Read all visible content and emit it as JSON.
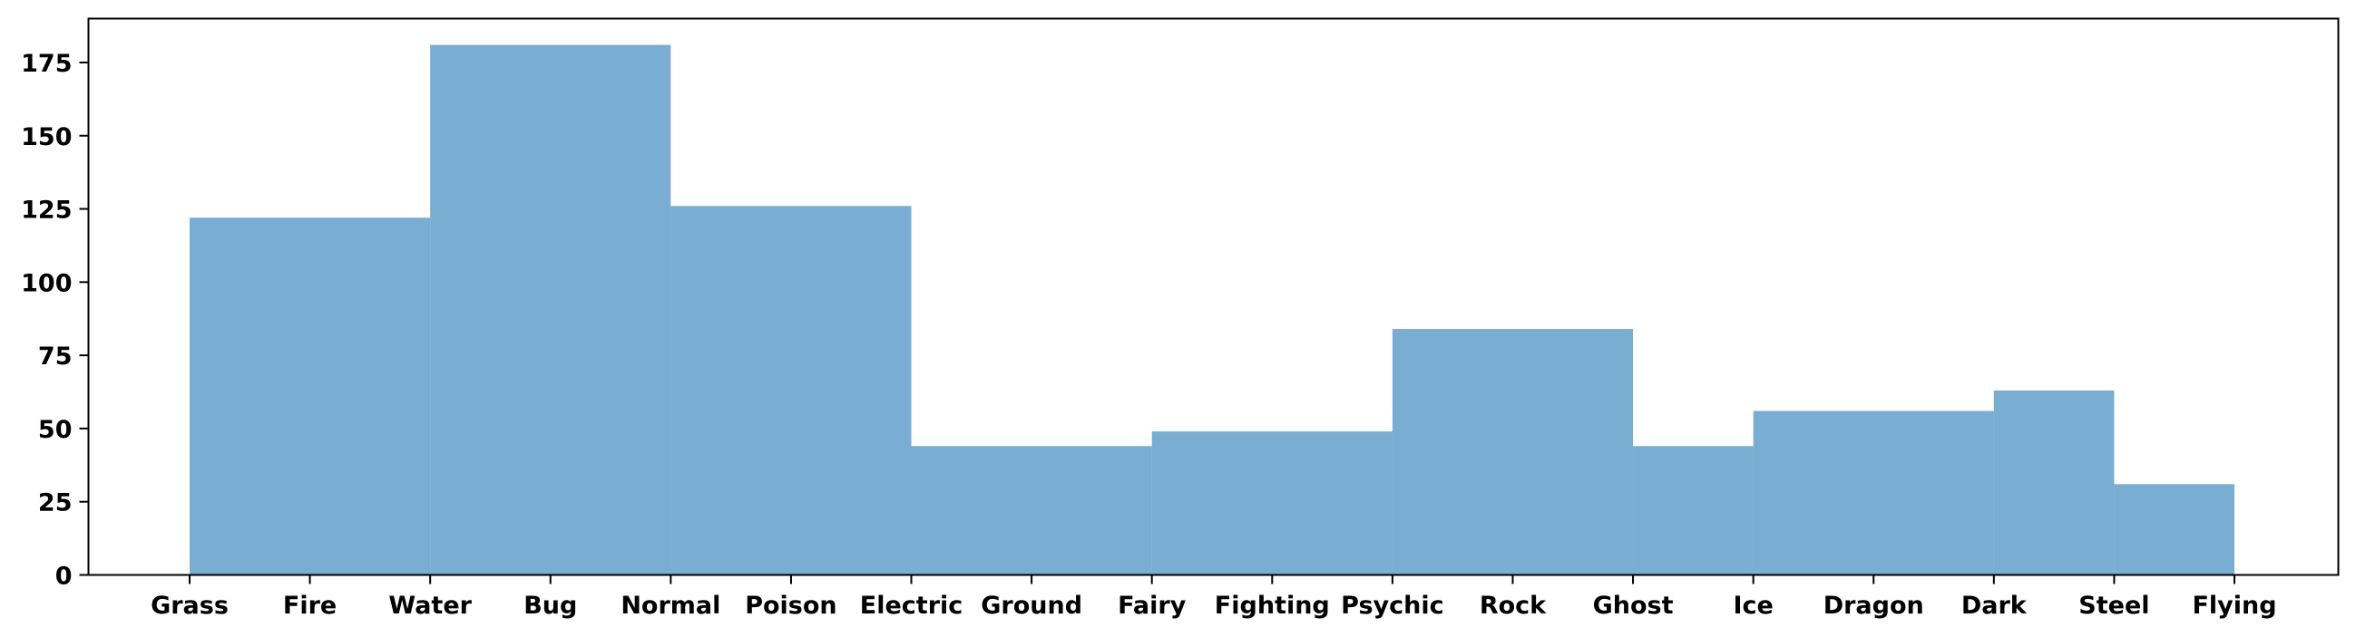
{
  "chart_data": {
    "type": "bar",
    "title": "",
    "xlabel": "",
    "ylabel": "",
    "x_ticks": [
      "Grass",
      "Fire",
      "Water",
      "Bug",
      "Normal",
      "Poison",
      "Electric",
      "Ground",
      "Fairy",
      "Fighting",
      "Psychic",
      "Rock",
      "Ghost",
      "Ice",
      "Dragon",
      "Dark",
      "Steel",
      "Flying"
    ],
    "bins": [
      {
        "start": "Grass",
        "end": "Water",
        "value": 122
      },
      {
        "start": "Water",
        "end": "Normal",
        "value": 181
      },
      {
        "start": "Normal",
        "end": "Electric",
        "value": 126
      },
      {
        "start": "Electric",
        "end": "Fairy",
        "value": 44
      },
      {
        "start": "Fairy",
        "end": "Psychic",
        "value": 49
      },
      {
        "start": "Psychic",
        "end": "Ghost",
        "value": 84
      },
      {
        "start": "Ghost",
        "end": "Ice",
        "value": 44
      },
      {
        "start": "Ice",
        "end": "Dark",
        "value": 56
      },
      {
        "start": "Dark",
        "end": "Steel",
        "value": 63
      },
      {
        "start": "Steel",
        "end": "Flying",
        "value": 31
      }
    ],
    "y_ticks": [
      0,
      25,
      50,
      75,
      100,
      125,
      150,
      175
    ],
    "ylim": [
      0,
      190
    ],
    "grid": false,
    "legend": "none",
    "bar_color": "#1f77b4",
    "bar_alpha": 0.6
  }
}
